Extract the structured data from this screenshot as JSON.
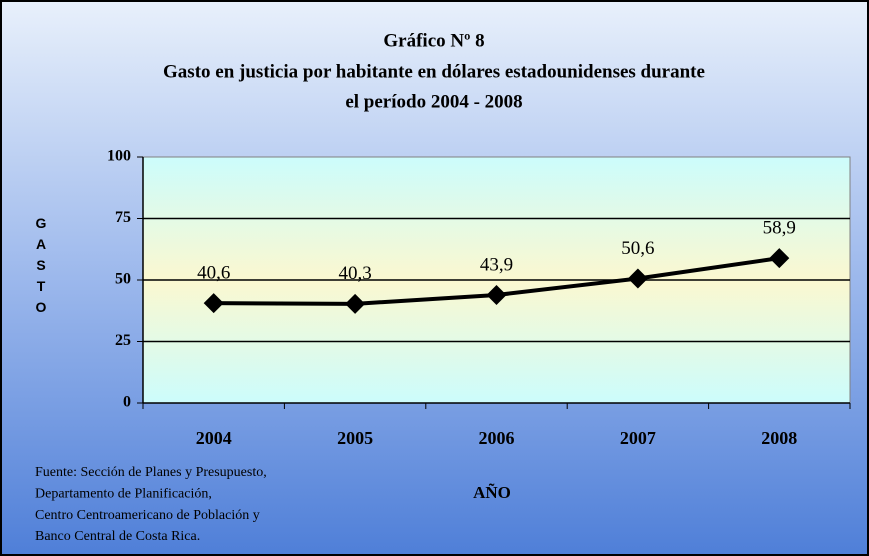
{
  "chart_data": {
    "type": "line",
    "title": "Gráfico Nº 8",
    "subtitle": [
      "Gasto en justicia por habitante  en dólares estadounidenses durante",
      "el período 2004 - 2008"
    ],
    "categories": [
      "2004",
      "2005",
      "2006",
      "2007",
      "2008"
    ],
    "values": [
      40.6,
      40.3,
      43.9,
      50.6,
      58.9
    ],
    "value_labels": [
      "40,6",
      "40,3",
      "43,9",
      "50,6",
      "58,9"
    ],
    "color": "#000000",
    "ylim": [
      0,
      100
    ],
    "yticks": [
      0,
      25,
      50,
      75,
      100
    ],
    "grid": true,
    "ylabel": "GASTO",
    "xlabel": "AÑO",
    "source": [
      "Fuente: Sección de Planes y Presupuesto,",
      "Departamento de Planificación,",
      "Centro Centroamericano de Población y",
      "Banco Central de Costa Rica."
    ]
  }
}
